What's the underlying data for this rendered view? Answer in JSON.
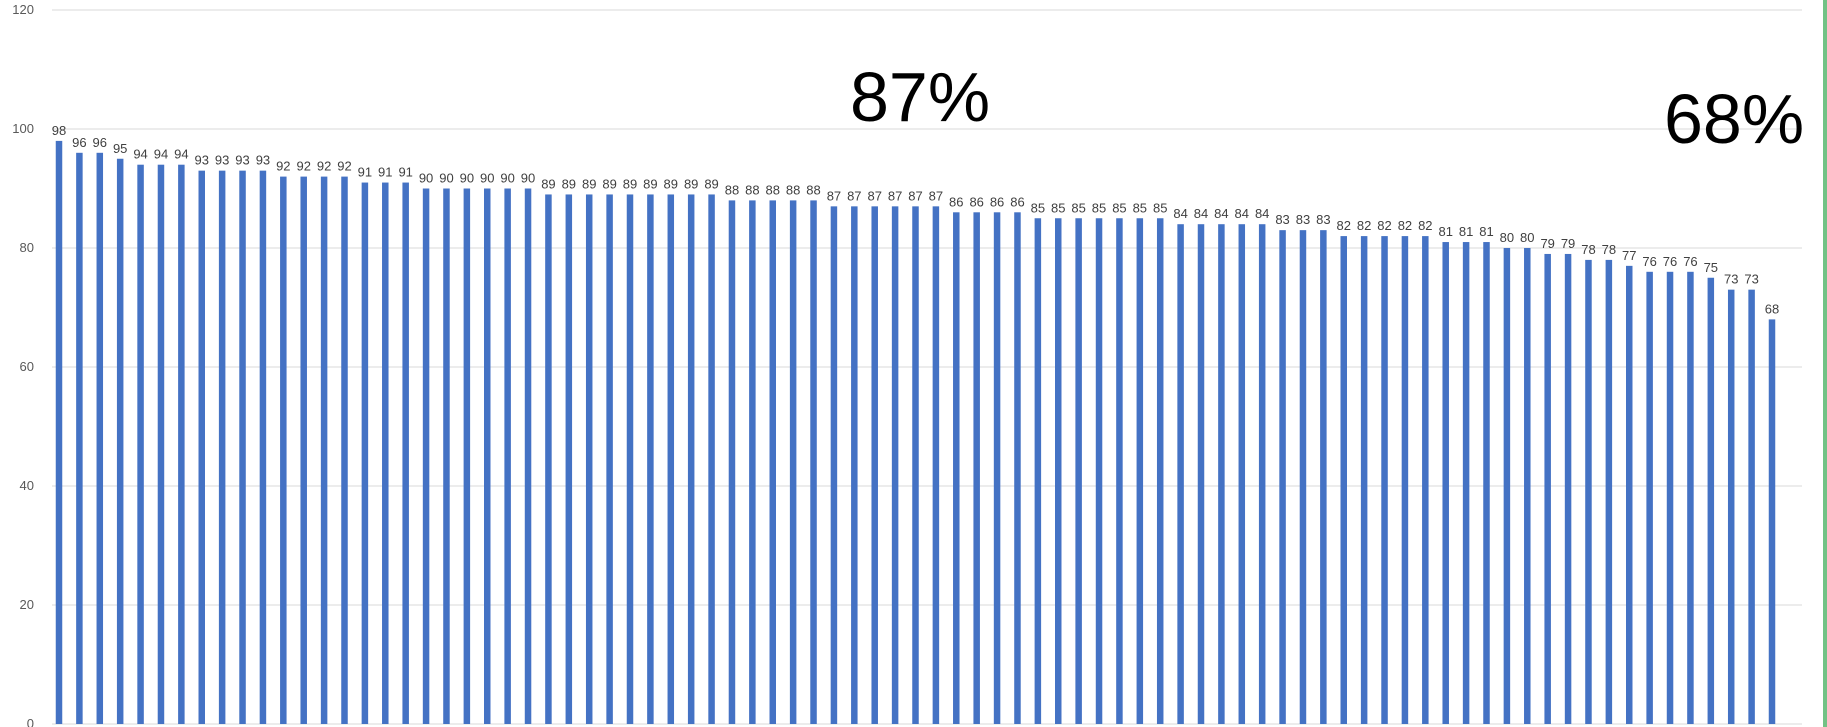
{
  "chart_data": {
    "type": "bar",
    "title": "",
    "xlabel": "",
    "ylabel": "",
    "ylim": [
      0,
      120
    ],
    "yticks": [
      0,
      20,
      40,
      60,
      80,
      100,
      120
    ],
    "grid": true,
    "legend": "none",
    "bar_color": "#4472c4",
    "values": [
      98,
      96,
      96,
      95,
      94,
      94,
      94,
      93,
      93,
      93,
      93,
      92,
      92,
      92,
      92,
      91,
      91,
      91,
      90,
      90,
      90,
      90,
      90,
      90,
      89,
      89,
      89,
      89,
      89,
      89,
      89,
      89,
      89,
      88,
      88,
      88,
      88,
      88,
      87,
      87,
      87,
      87,
      87,
      87,
      86,
      86,
      86,
      86,
      85,
      85,
      85,
      85,
      85,
      85,
      85,
      84,
      84,
      84,
      84,
      84,
      83,
      83,
      83,
      82,
      82,
      82,
      82,
      82,
      81,
      81,
      81,
      80,
      80,
      79,
      79,
      78,
      78,
      77,
      76,
      76,
      76,
      75,
      73,
      73,
      68
    ],
    "annotations": [
      {
        "text": "87%"
      },
      {
        "text": "68%"
      }
    ]
  },
  "colors": {
    "bar": "#4472c4",
    "grid": "#d9d9d9",
    "axis_text": "#595959",
    "right_edge": "#72c285"
  }
}
